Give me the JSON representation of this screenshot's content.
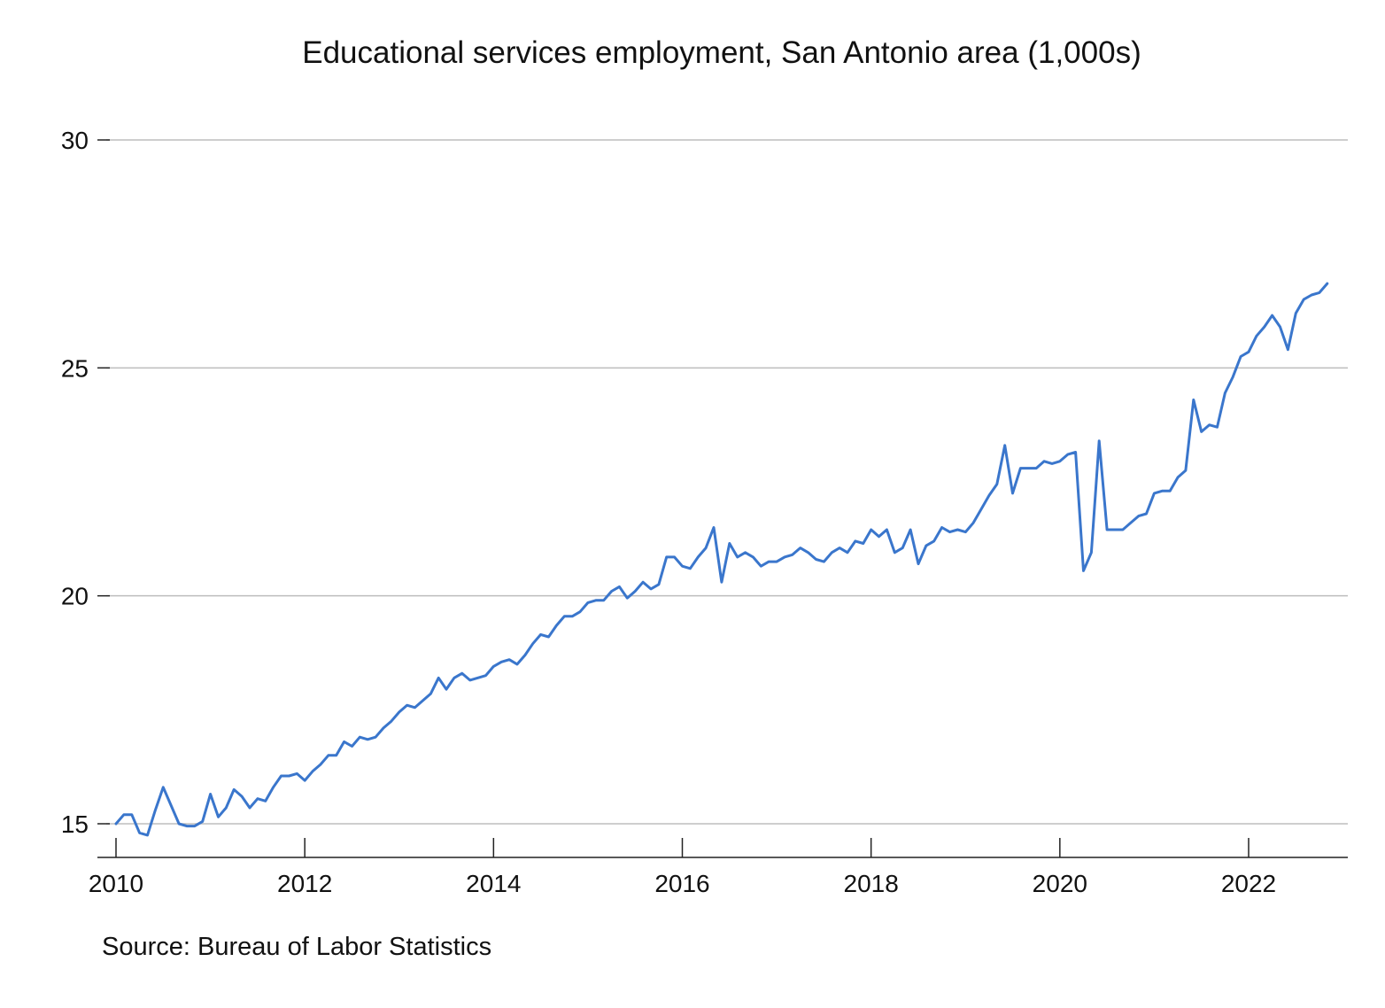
{
  "chart_data": {
    "type": "line",
    "title": "Educational services employment, San Antonio area (1,000s)",
    "source": "Source: Bureau of Labor Statistics",
    "xlabel": "",
    "ylabel": "",
    "xlim": [
      2010,
      2022.92
    ],
    "ylim": [
      14.3,
      30
    ],
    "y_ticks": [
      15,
      20,
      25,
      30
    ],
    "x_ticks": [
      2010,
      2012,
      2014,
      2016,
      2018,
      2020,
      2022
    ],
    "x_tick_labels": [
      "2010",
      "2012",
      "2014",
      "2016",
      "2018",
      "2020",
      "2022"
    ],
    "y_tick_labels": [
      "15",
      "20",
      "25",
      "30"
    ],
    "grid": "horizontal",
    "line_color": "#3a76cc",
    "series": [
      {
        "x_start": 2010,
        "step": "monthly",
        "values": [
          15.0,
          15.2,
          15.2,
          14.8,
          14.75,
          15.3,
          15.8,
          15.4,
          15.0,
          14.95,
          14.95,
          15.05,
          15.65,
          15.15,
          15.35,
          15.75,
          15.6,
          15.35,
          15.55,
          15.5,
          15.8,
          16.05,
          16.05,
          16.1,
          15.95,
          16.15,
          16.3,
          16.5,
          16.5,
          16.8,
          16.7,
          16.9,
          16.85,
          16.9,
          17.1,
          17.25,
          17.45,
          17.6,
          17.55,
          17.7,
          17.85,
          18.2,
          17.95,
          18.2,
          18.3,
          18.15,
          18.2,
          18.25,
          18.45,
          18.55,
          18.6,
          18.5,
          18.7,
          18.95,
          19.15,
          19.1,
          19.35,
          19.55,
          19.55,
          19.65,
          19.85,
          19.9,
          19.9,
          20.1,
          20.2,
          19.95,
          20.1,
          20.3,
          20.15,
          20.25,
          20.85,
          20.85,
          20.65,
          20.6,
          20.85,
          21.05,
          21.5,
          20.3,
          21.15,
          20.85,
          20.95,
          20.85,
          20.65,
          20.75,
          20.75,
          20.85,
          20.9,
          21.05,
          20.95,
          20.8,
          20.75,
          20.95,
          21.05,
          20.95,
          21.2,
          21.15,
          21.45,
          21.3,
          21.45,
          20.95,
          21.05,
          21.45,
          20.7,
          21.1,
          21.2,
          21.5,
          21.4,
          21.45,
          21.4,
          21.6,
          21.9,
          22.2,
          22.45,
          23.3,
          22.25,
          22.8,
          22.8,
          22.8,
          22.95,
          22.9,
          22.95,
          23.1,
          23.15,
          20.55,
          20.95,
          23.4,
          21.45,
          21.45,
          21.45,
          21.6,
          21.75,
          21.8,
          22.25,
          22.3,
          22.3,
          22.6,
          22.75,
          24.3,
          23.6,
          23.75,
          23.7,
          24.45,
          24.8,
          25.25,
          25.35,
          25.7,
          25.9,
          26.15,
          25.9,
          25.4,
          26.2,
          26.5,
          26.6,
          26.65,
          26.85
        ]
      }
    ]
  }
}
